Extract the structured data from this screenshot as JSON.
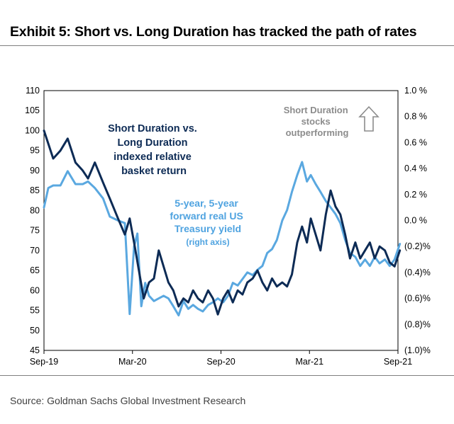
{
  "header": {
    "title": "Exhibit 5: Short vs. Long Duration has tracked the path of rates"
  },
  "footer": {
    "source": "Source: Goldman Sachs Global Investment Research"
  },
  "chart_data": {
    "type": "line",
    "x_tick_labels": [
      "Sep-19",
      "Mar-20",
      "Sep-20",
      "Mar-21",
      "Sep-21"
    ],
    "x_range": [
      "2019-09",
      "2021-09"
    ],
    "left_axis": {
      "ylim": [
        45,
        110
      ],
      "tick_labels": [
        "110",
        "105",
        "100",
        "95",
        "90",
        "85",
        "80",
        "75",
        "70",
        "65",
        "60",
        "55",
        "50",
        "45"
      ]
    },
    "right_axis": {
      "ylim": [
        -1.0,
        1.0
      ],
      "tick_labels": [
        "1.0 %",
        "0.8 %",
        "0.6 %",
        "0.4 %",
        "0.2 %",
        "0.0 %",
        "(0.2)%",
        "(0.4)%",
        "(0.6)%",
        "(0.8)%",
        "(1.0)%"
      ]
    },
    "annotations": {
      "dark_series_label": [
        "Short Duration vs.",
        "Long Duration",
        "indexed relative",
        "basket return"
      ],
      "light_series_label": [
        "5-year, 5-year",
        "forward real US",
        "Treasury yield"
      ],
      "light_series_axis_note": "(right axis)",
      "arrow_label": [
        "Short Duration",
        "stocks",
        "outperforming"
      ]
    },
    "colors": {
      "dark_series": "#0d2b55",
      "light_series": "#5aa8e0",
      "arrow": "#8c8c8c"
    },
    "series": [
      {
        "axis": "left",
        "x": [
          "2019-09-01",
          "2019-09-20",
          "2019-10-05",
          "2019-10-20",
          "2019-11-05",
          "2019-11-20",
          "2019-12-01",
          "2019-12-15",
          "2020-01-01",
          "2020-01-15",
          "2020-02-01",
          "2020-02-15",
          "2020-02-25",
          "2020-03-05",
          "2020-03-15",
          "2020-03-25",
          "2020-04-05",
          "2020-04-15",
          "2020-04-25",
          "2020-05-05",
          "2020-05-15",
          "2020-05-25",
          "2020-06-05",
          "2020-06-15",
          "2020-06-25",
          "2020-07-05",
          "2020-07-15",
          "2020-07-25",
          "2020-08-05",
          "2020-08-15",
          "2020-08-25",
          "2020-09-05",
          "2020-09-15",
          "2020-09-25",
          "2020-10-05",
          "2020-10-15",
          "2020-10-25",
          "2020-11-05",
          "2020-11-15",
          "2020-11-25",
          "2020-12-05",
          "2020-12-15",
          "2020-12-25",
          "2021-01-05",
          "2021-01-15",
          "2021-01-25",
          "2021-02-05",
          "2021-02-15",
          "2021-02-25",
          "2021-03-05",
          "2021-03-15",
          "2021-03-25",
          "2021-04-05",
          "2021-04-15",
          "2021-04-25",
          "2021-05-05",
          "2021-05-15",
          "2021-05-25",
          "2021-06-05",
          "2021-06-15",
          "2021-06-25",
          "2021-07-05",
          "2021-07-15",
          "2021-07-25",
          "2021-08-05",
          "2021-08-15",
          "2021-08-25",
          "2021-09-05"
        ],
        "values": [
          100,
          93,
          95,
          98,
          92,
          90,
          88,
          92,
          87,
          83,
          78,
          74,
          78,
          72,
          65,
          58,
          62,
          63,
          70,
          66,
          62,
          60,
          56,
          58,
          57,
          60,
          58,
          57,
          60,
          58,
          54,
          58,
          60,
          57,
          60,
          59,
          62,
          63,
          65,
          62,
          60,
          63,
          61,
          62,
          61,
          64,
          72,
          76,
          72,
          78,
          74,
          70,
          79,
          85,
          81,
          79,
          74,
          68,
          72,
          68,
          70,
          72,
          68,
          71,
          70,
          67,
          66,
          70
        ]
      },
      {
        "axis": "right",
        "x": [
          "2019-09-01",
          "2019-09-10",
          "2019-09-20",
          "2019-10-05",
          "2019-10-20",
          "2019-11-05",
          "2019-11-20",
          "2019-12-01",
          "2019-12-15",
          "2020-01-01",
          "2020-01-15",
          "2020-02-01",
          "2020-02-15",
          "2020-02-25",
          "2020-03-05",
          "2020-03-12",
          "2020-03-20",
          "2020-03-28",
          "2020-04-05",
          "2020-04-15",
          "2020-04-25",
          "2020-05-05",
          "2020-05-15",
          "2020-05-25",
          "2020-06-05",
          "2020-06-15",
          "2020-06-25",
          "2020-07-05",
          "2020-07-15",
          "2020-07-25",
          "2020-08-05",
          "2020-08-15",
          "2020-08-25",
          "2020-09-05",
          "2020-09-15",
          "2020-09-25",
          "2020-10-05",
          "2020-10-15",
          "2020-10-25",
          "2020-11-05",
          "2020-11-15",
          "2020-11-25",
          "2020-12-05",
          "2020-12-15",
          "2020-12-25",
          "2021-01-05",
          "2021-01-15",
          "2021-01-25",
          "2021-02-05",
          "2021-02-15",
          "2021-02-25",
          "2021-03-05",
          "2021-03-15",
          "2021-03-25",
          "2021-04-05",
          "2021-04-15",
          "2021-04-25",
          "2021-05-05",
          "2021-05-15",
          "2021-05-25",
          "2021-06-05",
          "2021-06-15",
          "2021-06-25",
          "2021-07-05",
          "2021-07-15",
          "2021-07-25",
          "2021-08-05",
          "2021-08-15",
          "2021-08-25",
          "2021-09-05"
        ],
        "values": [
          0.1,
          0.25,
          0.27,
          0.27,
          0.38,
          0.28,
          0.28,
          0.3,
          0.25,
          0.17,
          0.03,
          0.0,
          -0.02,
          -0.72,
          -0.2,
          -0.1,
          -0.66,
          -0.48,
          -0.58,
          -0.62,
          -0.6,
          -0.58,
          -0.6,
          -0.66,
          -0.73,
          -0.62,
          -0.68,
          -0.65,
          -0.68,
          -0.7,
          -0.65,
          -0.63,
          -0.6,
          -0.63,
          -0.58,
          -0.48,
          -0.5,
          -0.45,
          -0.4,
          -0.42,
          -0.38,
          -0.35,
          -0.25,
          -0.22,
          -0.15,
          0.0,
          0.08,
          0.22,
          0.35,
          0.45,
          0.3,
          0.35,
          0.28,
          0.22,
          0.15,
          0.1,
          0.05,
          -0.02,
          -0.15,
          -0.25,
          -0.28,
          -0.35,
          -0.3,
          -0.35,
          -0.28,
          -0.33,
          -0.3,
          -0.35,
          -0.3,
          -0.18
        ]
      }
    ]
  }
}
